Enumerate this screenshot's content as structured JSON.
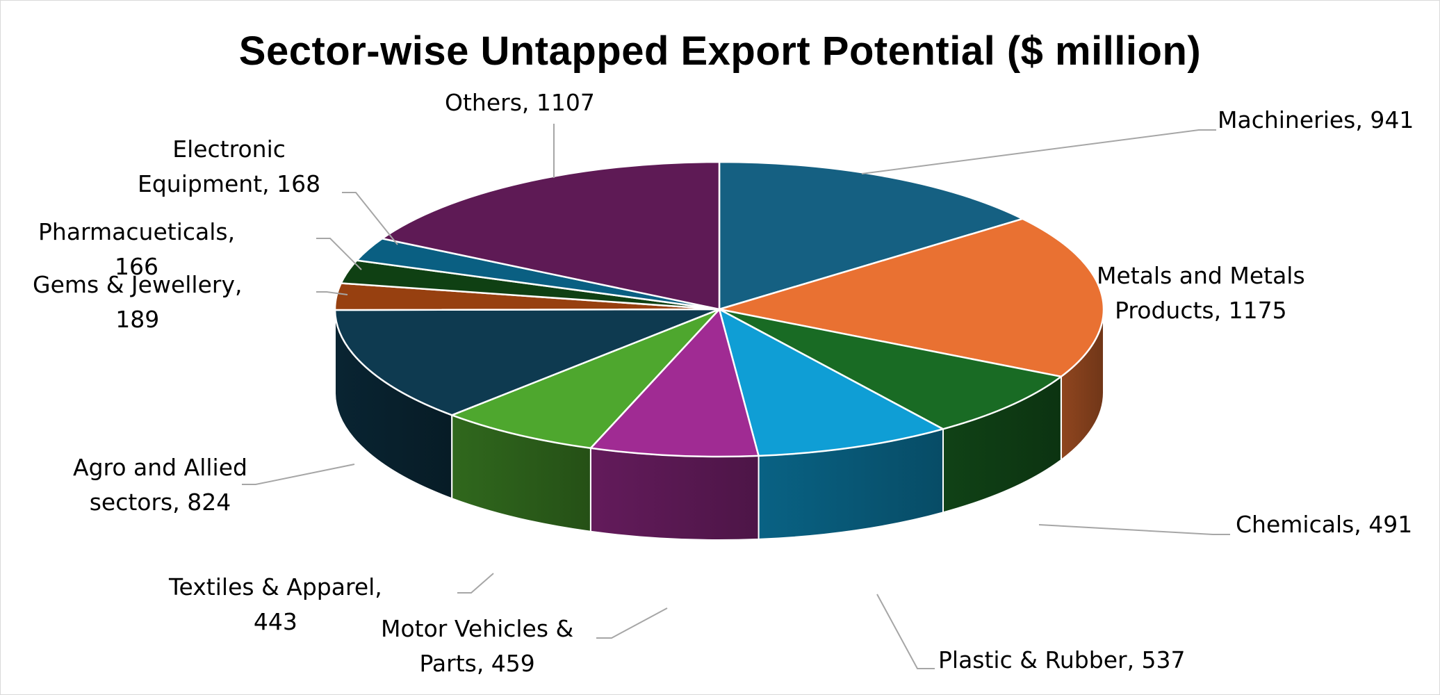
{
  "chart_data": {
    "type": "pie",
    "title": "Sector-wise Untapped Export Potential ($ million)",
    "slices": [
      {
        "key": "machineries",
        "label_lines": [
          "Machineries, 941"
        ],
        "value": 941,
        "color": "#156082"
      },
      {
        "key": "metals",
        "label_lines": [
          "Metals and Metals",
          "Products, 1175"
        ],
        "value": 1175,
        "color": "#E97132"
      },
      {
        "key": "chemicals",
        "label_lines": [
          "Chemicals, 491"
        ],
        "value": 491,
        "color": "#196B24"
      },
      {
        "key": "plastic",
        "label_lines": [
          "Plastic & Rubber, 537"
        ],
        "value": 537,
        "color": "#0F9ED5"
      },
      {
        "key": "motor",
        "label_lines": [
          "Motor Vehicles &",
          "Parts, 459"
        ],
        "value": 459,
        "color": "#A02B93"
      },
      {
        "key": "textiles",
        "label_lines": [
          "Textiles & Apparel,",
          "443"
        ],
        "value": 443,
        "color": "#4EA72E"
      },
      {
        "key": "agro",
        "label_lines": [
          "Agro and Allied",
          "sectors, 824"
        ],
        "value": 824,
        "color": "#0E3A50"
      },
      {
        "key": "gems",
        "label_lines": [
          "Gems & Jewellery,",
          "189"
        ],
        "value": 189,
        "color": "#974010"
      },
      {
        "key": "pharma",
        "label_lines": [
          "Pharmacueticals,",
          "166"
        ],
        "value": 166,
        "color": "#0F4013"
      },
      {
        "key": "electronic",
        "label_lines": [
          "Electronic",
          "Equipment, 168"
        ],
        "value": 168,
        "color": "#0A5F82"
      },
      {
        "key": "others",
        "label_lines": [
          "Others, 1107"
        ],
        "value": 1107,
        "color": "#5E1A55"
      }
    ],
    "legend": "none (data labels with leader lines)",
    "style": "3-D pie"
  }
}
